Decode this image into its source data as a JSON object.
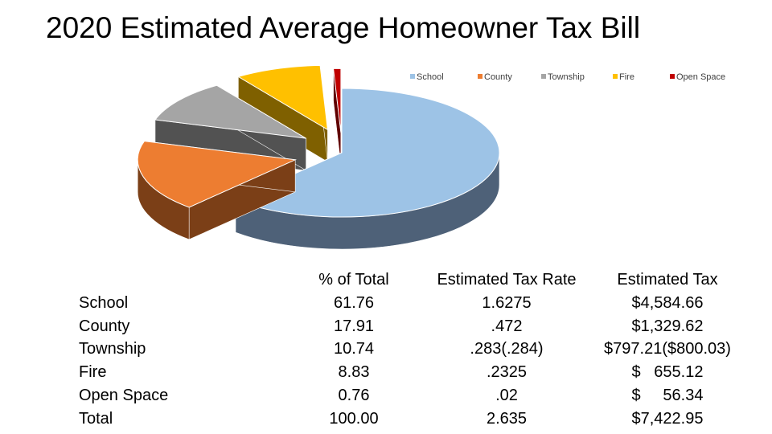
{
  "chart_data": {
    "type": "pie",
    "title": "2020 Estimated Average Homeowner Tax Bill",
    "legend_position": "top-right",
    "categories": [
      "School",
      "County",
      "Township",
      "Fire",
      "Open Space"
    ],
    "values": [
      61.76,
      17.91,
      10.74,
      8.83,
      0.76
    ],
    "colors": [
      "#9DC3E6",
      "#ED7D31",
      "#A5A5A5",
      "#FFC000",
      "#C00000"
    ],
    "side_colors": [
      "#4E6178",
      "#7B3F17",
      "#525252",
      "#7F6000",
      "#600000"
    ]
  },
  "table": {
    "headers": {
      "pct": "% of Total",
      "rate": "Estimated Tax Rate",
      "tax": "Estimated Tax"
    },
    "rows": [
      {
        "name": "School",
        "pct": "61.76",
        "rate": "1.6275",
        "tax": "$4,584.66"
      },
      {
        "name": "County",
        "pct": "17.91",
        "rate": ".472",
        "tax": "$1,329.62"
      },
      {
        "name": "Township",
        "pct": "10.74",
        "rate": ".283(.284)",
        "tax": "$797.21($800.03)"
      },
      {
        "name": "Fire",
        "pct": "8.83",
        "rate": ".2325",
        "tax": "$   655.12"
      },
      {
        "name": "Open Space",
        "pct": "0.76",
        "rate": ".02",
        "tax": "$     56.34"
      },
      {
        "name": "Total",
        "pct": "100.00",
        "rate": "2.635",
        "tax": "$7,422.95"
      }
    ]
  }
}
